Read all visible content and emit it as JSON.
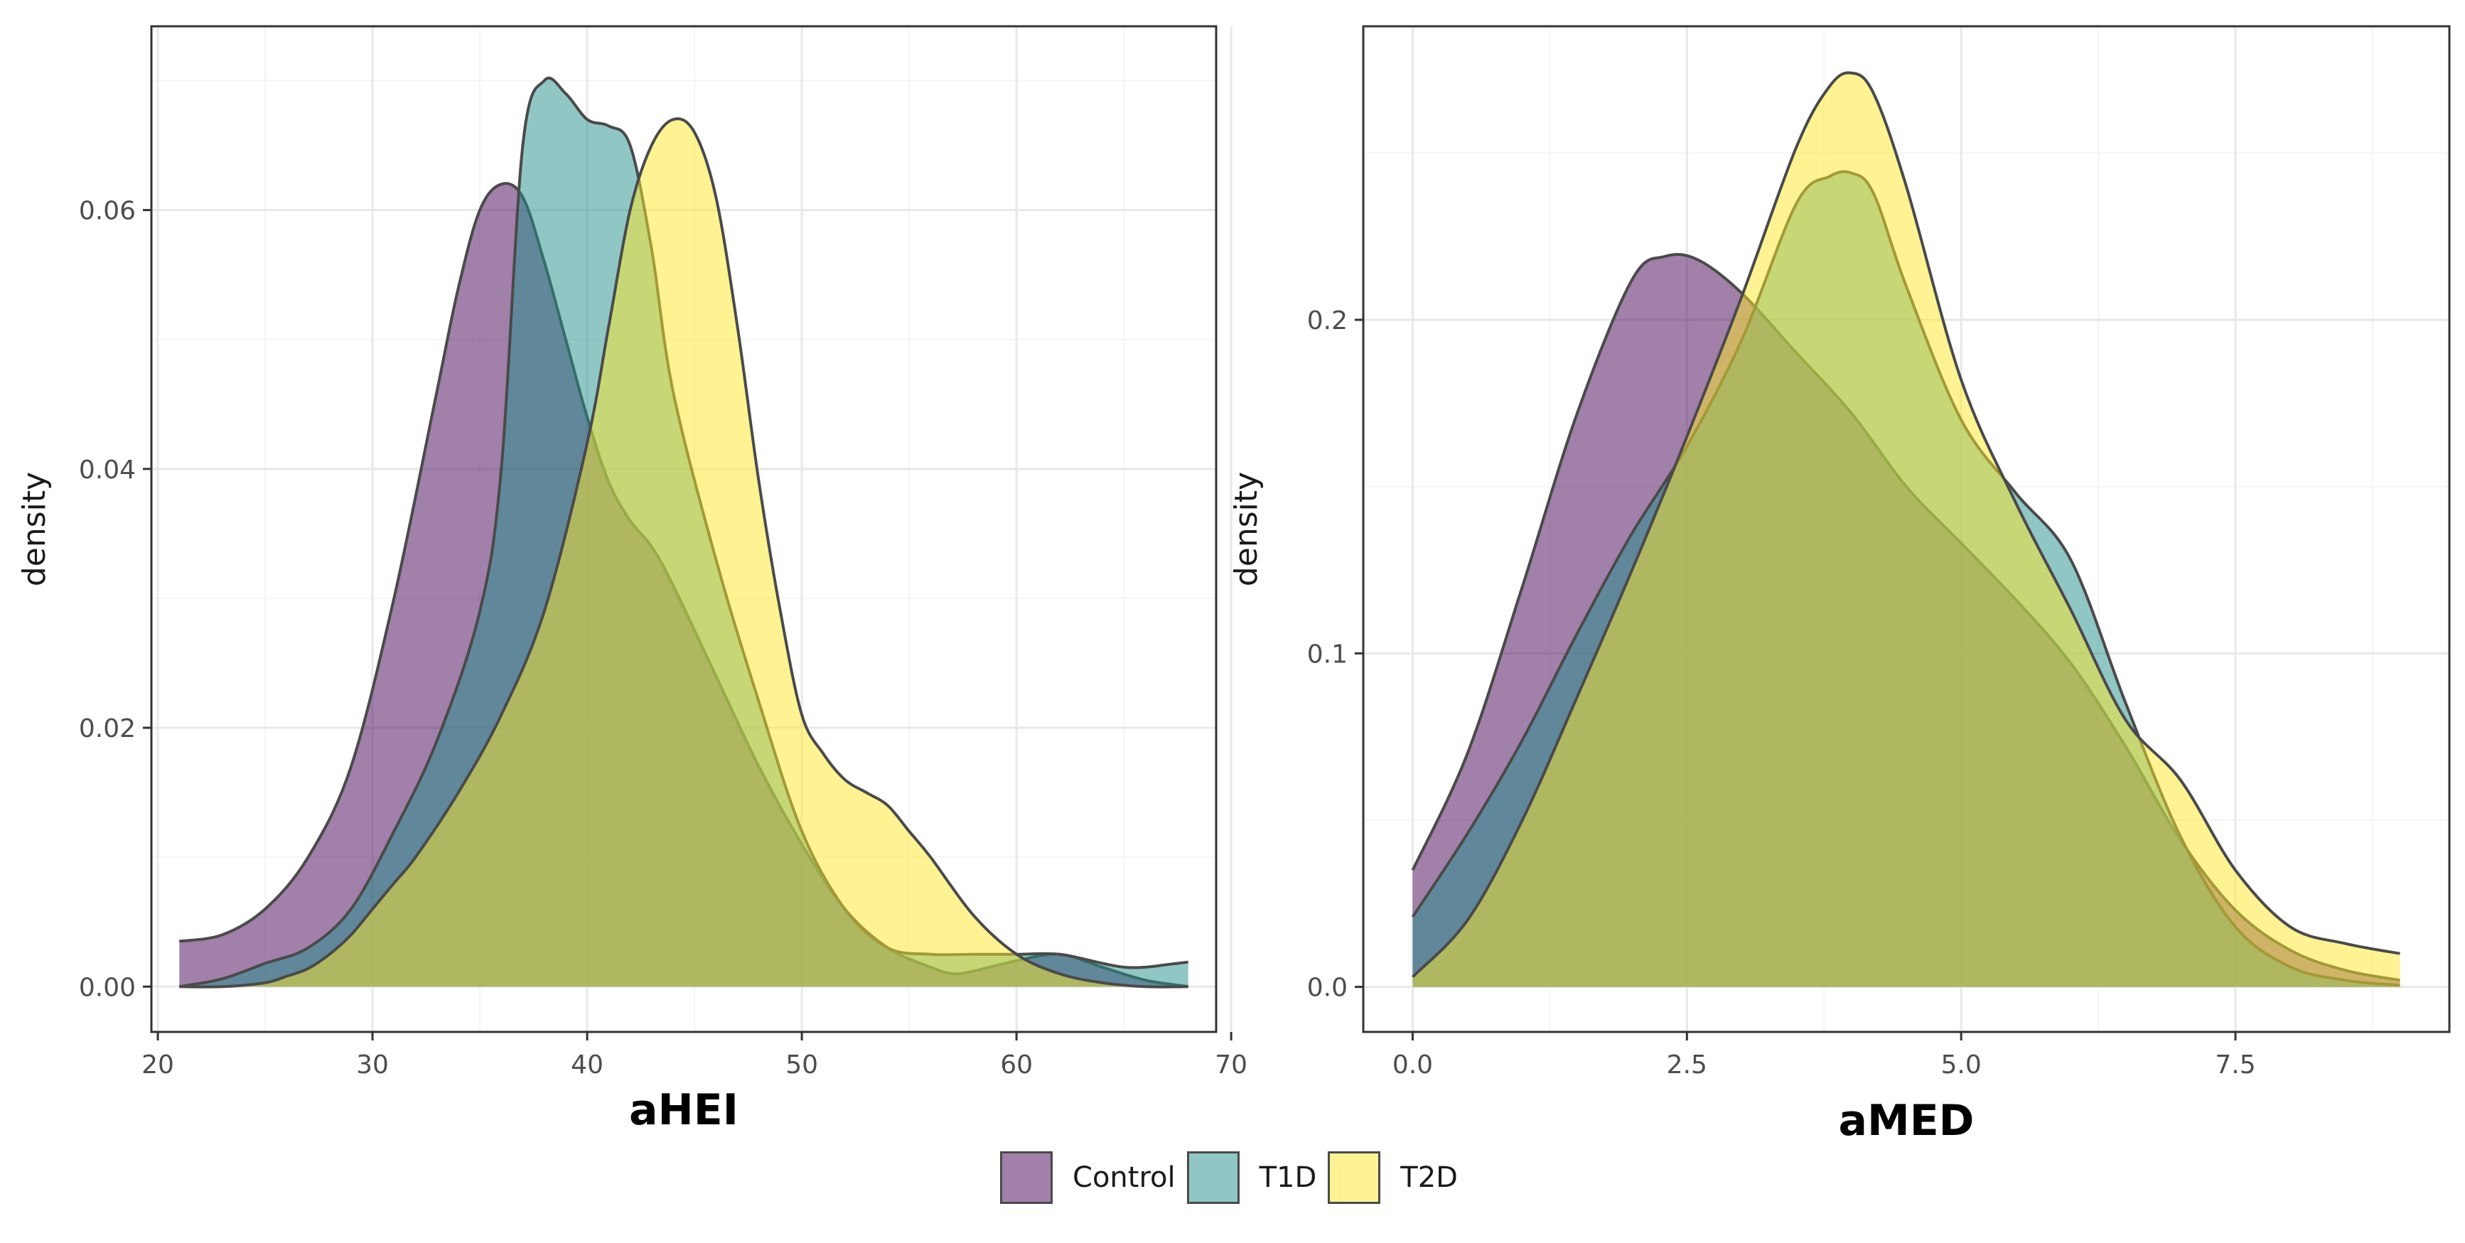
{
  "chart_data": [
    {
      "type": "area",
      "subtype": "density",
      "xlabel": "aHEI",
      "ylabel": "density",
      "xlim": [
        19.7,
        69.3
      ],
      "ylim": [
        -0.0035,
        0.0742
      ],
      "xticks": [
        20,
        30,
        40,
        50,
        60,
        70
      ],
      "xtick_labels": [
        "20",
        "30",
        "40",
        "50",
        "60",
        "70"
      ],
      "yticks": [
        0.0,
        0.02,
        0.04,
        0.06
      ],
      "ytick_labels": [
        "0.00",
        "0.02",
        "0.04",
        "0.06"
      ],
      "grid": true,
      "series": [
        {
          "name": "Control",
          "x": [
            21,
            23,
            25,
            27,
            29,
            31,
            33,
            34,
            35,
            36,
            37,
            38,
            39,
            40,
            41,
            42,
            43,
            44,
            46,
            48,
            50,
            52,
            54,
            56,
            57,
            58,
            60,
            62,
            64,
            66,
            68
          ],
          "y": [
            0.0035,
            0.004,
            0.006,
            0.01,
            0.017,
            0.03,
            0.046,
            0.054,
            0.06,
            0.062,
            0.061,
            0.056,
            0.05,
            0.044,
            0.039,
            0.036,
            0.034,
            0.031,
            0.024,
            0.017,
            0.011,
            0.006,
            0.003,
            0.0015,
            0.001,
            0.0012,
            0.002,
            0.0025,
            0.0015,
            0.0005,
            0.0
          ]
        },
        {
          "name": "T1D",
          "x": [
            21,
            23,
            25,
            27,
            29,
            31,
            33,
            35,
            36,
            37,
            38,
            39,
            40,
            41,
            42,
            43,
            44,
            46,
            48,
            50,
            52,
            54,
            56,
            58,
            60,
            62,
            64,
            65,
            66,
            67,
            68
          ],
          "y": [
            0.0,
            0.0006,
            0.0018,
            0.003,
            0.006,
            0.012,
            0.019,
            0.029,
            0.04,
            0.065,
            0.07,
            0.069,
            0.067,
            0.0665,
            0.065,
            0.057,
            0.046,
            0.033,
            0.022,
            0.012,
            0.006,
            0.003,
            0.0025,
            0.0025,
            0.0025,
            0.0025,
            0.0018,
            0.0015,
            0.0015,
            0.0017,
            0.0019
          ]
        },
        {
          "name": "T2D",
          "x": [
            21,
            23,
            25,
            26,
            27,
            28,
            29,
            30,
            31,
            32,
            34,
            36,
            38,
            40,
            41,
            42,
            43,
            44,
            45,
            46,
            47,
            48,
            49,
            50,
            51,
            52,
            53,
            54,
            55,
            56,
            58,
            60,
            62,
            64,
            66,
            68
          ],
          "y": [
            0.0,
            0.0,
            0.0003,
            0.0008,
            0.0014,
            0.0025,
            0.004,
            0.006,
            0.008,
            0.01,
            0.015,
            0.021,
            0.029,
            0.042,
            0.051,
            0.06,
            0.065,
            0.067,
            0.066,
            0.061,
            0.051,
            0.039,
            0.029,
            0.021,
            0.018,
            0.016,
            0.015,
            0.014,
            0.012,
            0.01,
            0.0055,
            0.0025,
            0.001,
            0.0003,
            0.0,
            0.0
          ]
        }
      ]
    },
    {
      "type": "area",
      "subtype": "density",
      "xlabel": "aMED",
      "ylabel": "density",
      "xlim": [
        -0.45,
        9.45
      ],
      "ylim": [
        -0.0135,
        0.288
      ],
      "xticks": [
        0,
        2.5,
        5,
        7.5
      ],
      "xtick_labels": [
        "0.0",
        "2.5",
        "5.0",
        "7.5"
      ],
      "yticks": [
        0.0,
        0.1,
        0.2
      ],
      "ytick_labels": [
        "0.0",
        "0.1",
        "0.2"
      ],
      "grid": true,
      "series": [
        {
          "name": "Control",
          "x": [
            0,
            0.5,
            1,
            1.5,
            2,
            2.3,
            2.6,
            3,
            3.5,
            4,
            4.5,
            5,
            5.5,
            6,
            6.5,
            7,
            7.5,
            8,
            8.5,
            9
          ],
          "y": [
            0.035,
            0.07,
            0.12,
            0.172,
            0.212,
            0.219,
            0.218,
            0.208,
            0.19,
            0.172,
            0.15,
            0.133,
            0.116,
            0.097,
            0.072,
            0.044,
            0.023,
            0.011,
            0.005,
            0.002
          ]
        },
        {
          "name": "T1D",
          "x": [
            0,
            0.5,
            1,
            1.5,
            2,
            2.5,
            3,
            3.5,
            3.8,
            4,
            4.2,
            4.5,
            5,
            5.5,
            6,
            6.5,
            7,
            7.5,
            8,
            8.5,
            9
          ],
          "y": [
            0.021,
            0.046,
            0.074,
            0.106,
            0.136,
            0.162,
            0.194,
            0.235,
            0.243,
            0.244,
            0.238,
            0.21,
            0.17,
            0.148,
            0.128,
            0.085,
            0.045,
            0.018,
            0.006,
            0.002,
            0.0005
          ]
        },
        {
          "name": "T2D",
          "x": [
            0,
            0.5,
            1,
            1.5,
            2,
            2.5,
            3,
            3.5,
            3.8,
            4,
            4.2,
            4.5,
            5,
            5.5,
            6,
            6.5,
            7,
            7.5,
            8,
            8.5,
            9
          ],
          "y": [
            0.003,
            0.02,
            0.05,
            0.087,
            0.125,
            0.165,
            0.207,
            0.252,
            0.27,
            0.274,
            0.268,
            0.24,
            0.182,
            0.145,
            0.113,
            0.08,
            0.062,
            0.035,
            0.018,
            0.013,
            0.01
          ]
        }
      ]
    }
  ],
  "legend": {
    "position": "bottom",
    "items": [
      {
        "label": "Control",
        "color": "#440154"
      },
      {
        "label": "T1D",
        "color": "#21908C"
      },
      {
        "label": "T2D",
        "color": "#FDE725"
      }
    ]
  },
  "style": {
    "fill_opacity": 0.5,
    "outline_color": "#4a4a4a",
    "grid_major": "#e8e8e8",
    "grid_minor": "#f4f4f4",
    "panel_border": "#333333"
  }
}
